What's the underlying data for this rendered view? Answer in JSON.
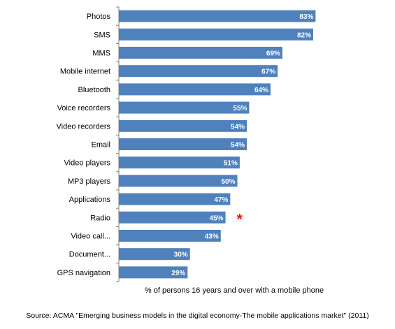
{
  "chart_data": {
    "type": "bar",
    "orientation": "horizontal",
    "categories": [
      "Photos",
      "SMS",
      "MMS",
      "Mobile internet",
      "Bluetooth",
      "Voice recorders",
      "Video recorders",
      "Email",
      "Video players",
      "MP3 players",
      "Applications",
      "Radio",
      "Video call...",
      "Document...",
      "GPS navigation"
    ],
    "values": [
      83,
      82,
      69,
      67,
      64,
      55,
      54,
      54,
      51,
      50,
      47,
      45,
      43,
      30,
      29
    ],
    "value_labels": [
      "83%",
      "82%",
      "69%",
      "67%",
      "64%",
      "55%",
      "54%",
      "54%",
      "51%",
      "50%",
      "47%",
      "45%",
      "43%",
      "30%",
      "29%"
    ],
    "xlabel": "% of persons 16 years and over with a mobile phone",
    "xlim": [
      0,
      100
    ],
    "grid": false,
    "bar_color": "#4f81bd",
    "annotations": [
      {
        "category": "Radio",
        "text": "*",
        "color": "#e31a1c"
      }
    ]
  },
  "source": "Source: ACMA \"Emerging business models in the digital economy-The mobile applications market\" (2011)"
}
